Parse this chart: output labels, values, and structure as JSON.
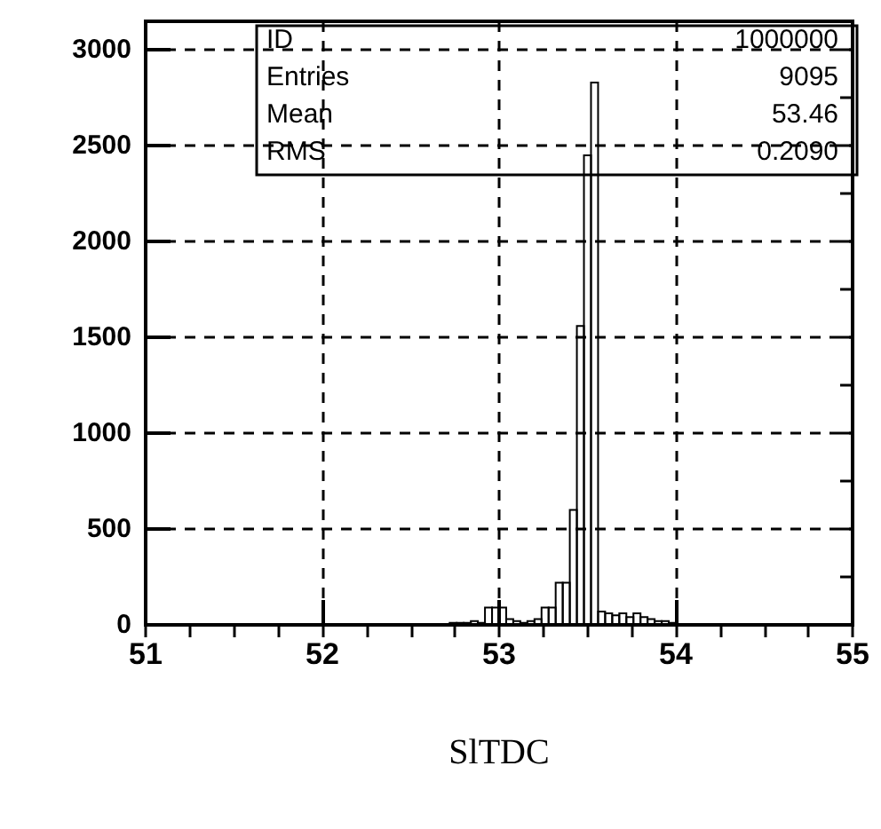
{
  "chart_data": {
    "type": "histogram",
    "xlabel": "SlTDC",
    "bins": [
      52.0,
      52.04,
      52.08,
      52.12,
      52.16,
      52.2,
      52.24,
      52.28,
      52.32,
      52.36,
      52.4,
      52.44,
      52.48,
      52.52,
      52.56,
      52.6,
      52.64,
      52.68,
      52.72,
      52.76,
      52.8,
      52.84,
      52.88,
      52.92,
      52.96,
      53.0,
      53.04,
      53.08,
      53.12,
      53.16,
      53.2,
      53.24,
      53.28,
      53.32,
      53.36,
      53.4,
      53.44,
      53.48,
      53.52,
      53.56,
      53.6,
      53.64,
      53.68,
      53.72,
      53.76,
      53.8,
      53.84,
      53.88,
      53.92,
      53.96,
      54.0,
      54.04,
      54.08
    ],
    "values": [
      0,
      0,
      0,
      0,
      0,
      0,
      0,
      0,
      0,
      0,
      0,
      0,
      0,
      0,
      0,
      0,
      0,
      0,
      10,
      10,
      10,
      20,
      10,
      90,
      90,
      90,
      30,
      20,
      10,
      20,
      30,
      90,
      90,
      220,
      220,
      600,
      1560,
      2450,
      2830,
      70,
      60,
      50,
      60,
      40,
      60,
      40,
      30,
      20,
      20,
      10,
      0,
      0
    ],
    "color": "#000000",
    "xlim": [
      51,
      55
    ],
    "xticks": [
      51,
      {
        "value": 51.25,
        "label": null
      },
      {
        "value": 51.5,
        "label": null
      },
      {
        "value": 51.75,
        "label": null
      },
      52,
      {
        "value": 52.25,
        "label": null
      },
      {
        "value": 52.5,
        "label": null
      },
      {
        "value": 52.75,
        "label": null
      },
      53,
      {
        "value": 53.25,
        "label": null
      },
      {
        "value": 53.5,
        "label": null
      },
      {
        "value": 53.75,
        "label": null
      },
      54,
      {
        "value": 54.25,
        "label": null
      },
      {
        "value": 54.5,
        "label": null
      },
      {
        "value": 54.75,
        "label": null
      },
      55
    ],
    "ylim": [
      0,
      3150
    ],
    "yticks": [
      0,
      {
        "value": 250,
        "label": null
      },
      500,
      {
        "value": 750,
        "label": null
      },
      1000,
      {
        "value": 1250,
        "label": null
      },
      1500,
      {
        "value": 1750,
        "label": null
      },
      2000,
      {
        "value": 2250,
        "label": null
      },
      2500,
      {
        "value": 2750,
        "label": null
      },
      3000
    ],
    "grid": true,
    "annotations": [
      "ID",
      "1000000",
      "Entries",
      "9095",
      "Mean",
      "53.46",
      "RMS",
      "0.2090"
    ]
  }
}
